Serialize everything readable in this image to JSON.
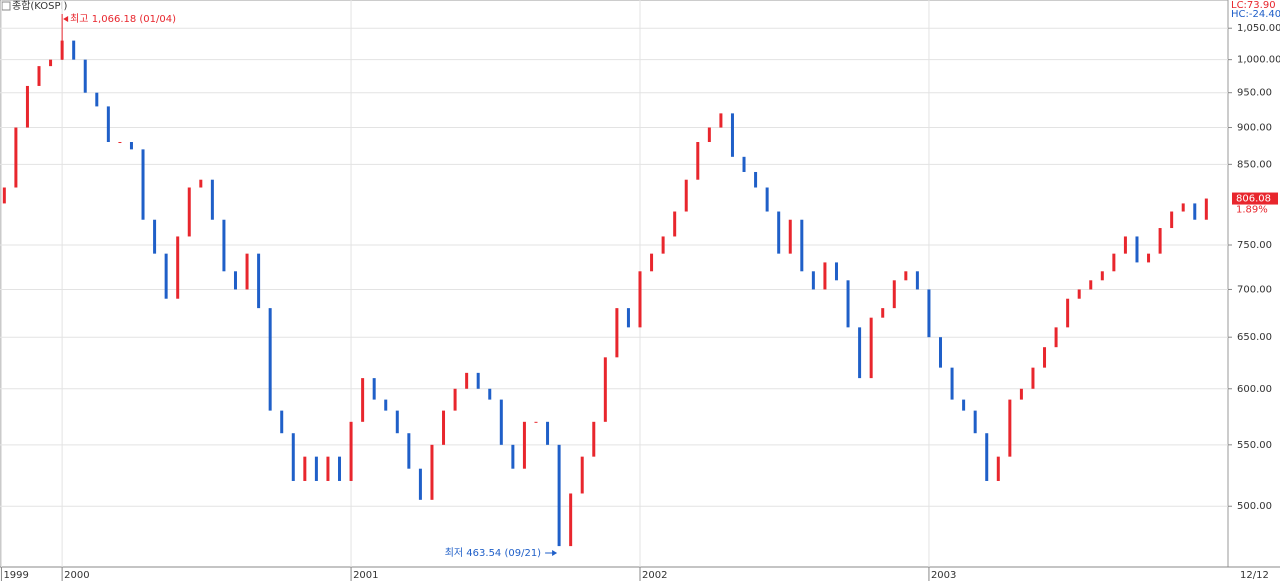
{
  "chart_data": {
    "type": "candlestick",
    "title": "종합(KOSPI)",
    "log_scale": true,
    "grid": true,
    "up_color": "#e8262d",
    "down_color": "#1f5fc8",
    "indicators": [
      "LC:73.90",
      "HC:-24.40"
    ],
    "change": "1.89%",
    "annotations": [
      "최고 1,066.18 (01/04)",
      "최저 463.54 (09/21)"
    ],
    "end_label": "12/12",
    "xlim": [
      1999.785,
      2004.035
    ],
    "xticks": [
      {
        "value": 1999.79,
        "label": "1999"
      },
      2000,
      2001,
      2002,
      2003
    ],
    "ylim": [
      455,
      1097
    ],
    "yticks": [
      500,
      {
        "value": 550,
        "label": "550.00"
      },
      {
        "value": 600,
        "label": "600.00"
      },
      {
        "value": 650,
        "label": "650.00"
      },
      {
        "value": 700,
        "label": "700.00"
      },
      {
        "value": 750,
        "label": "750.00"
      },
      {
        "value": 850,
        "label": "850.00"
      },
      {
        "value": 900,
        "label": "900.00"
      },
      {
        "value": 950,
        "label": "950.00"
      },
      {
        "value": 1000,
        "label": "1,000.00"
      },
      {
        "value": 1050,
        "label": "1,050.00"
      }
    ],
    "ytick_500_label": "500.00",
    "x": [
      1999.8,
      1999.84,
      1999.88,
      1999.92,
      1999.96,
      2000,
      2000.04,
      2000.08,
      2000.12,
      2000.16,
      2000.2,
      2000.24,
      2000.28,
      2000.32,
      2000.36,
      2000.4,
      2000.44,
      2000.48,
      2000.52,
      2000.56,
      2000.6,
      2000.64,
      2000.68,
      2000.72,
      2000.76,
      2000.8,
      2000.84,
      2000.88,
      2000.92,
      2000.96,
      2001,
      2001.04,
      2001.08,
      2001.12,
      2001.16,
      2001.2,
      2001.24,
      2001.28,
      2001.32,
      2001.36,
      2001.4,
      2001.44,
      2001.48,
      2001.52,
      2001.56,
      2001.6,
      2001.64,
      2001.68,
      2001.72,
      2001.76,
      2001.8,
      2001.84,
      2001.88,
      2001.92,
      2001.96,
      2002,
      2002.04,
      2002.08,
      2002.12,
      2002.16,
      2002.2,
      2002.24,
      2002.28,
      2002.32,
      2002.36,
      2002.4,
      2002.44,
      2002.48,
      2002.52,
      2002.56,
      2002.6,
      2002.64,
      2002.68,
      2002.72,
      2002.76,
      2002.8,
      2002.84,
      2002.88,
      2002.92,
      2002.96,
      2003,
      2003.04,
      2003.08,
      2003.12,
      2003.16,
      2003.2,
      2003.24,
      2003.28,
      2003.32,
      2003.36,
      2003.4,
      2003.44,
      2003.48,
      2003.52,
      2003.56,
      2003.6,
      2003.64,
      2003.68,
      2003.72,
      2003.76,
      2003.8,
      2003.84,
      2003.88,
      2003.92,
      2003.96
    ],
    "open": [
      800,
      820,
      900,
      960,
      990,
      1000,
      1030,
      1000,
      950,
      930,
      880,
      880,
      870,
      780,
      740,
      690,
      760,
      820,
      830,
      780,
      720,
      700,
      740,
      680,
      580,
      560,
      520,
      540,
      520,
      540,
      520,
      570,
      610,
      590,
      580,
      560,
      530,
      505,
      550,
      580,
      600,
      615,
      600,
      590,
      550,
      530,
      570,
      570,
      550,
      470,
      510,
      540,
      570,
      630,
      680,
      660,
      720,
      740,
      760,
      790,
      830,
      880,
      900,
      920,
      860,
      840,
      820,
      790,
      740,
      780,
      720,
      700,
      730,
      710,
      660,
      610,
      670,
      680,
      710,
      720,
      700,
      650,
      620,
      590,
      580,
      560,
      520,
      540,
      590,
      600,
      620,
      640,
      660,
      690,
      700,
      710,
      720,
      740,
      760,
      730,
      740,
      770,
      790,
      800,
      780
    ],
    "close": [
      820,
      900,
      960,
      990,
      1000,
      1030,
      1000,
      950,
      930,
      880,
      880,
      870,
      780,
      740,
      690,
      760,
      820,
      830,
      780,
      720,
      700,
      740,
      680,
      580,
      560,
      520,
      540,
      520,
      540,
      520,
      570,
      610,
      590,
      580,
      560,
      530,
      505,
      550,
      580,
      600,
      615,
      600,
      590,
      550,
      530,
      570,
      570,
      550,
      470,
      510,
      540,
      570,
      630,
      680,
      660,
      720,
      740,
      760,
      790,
      830,
      880,
      900,
      920,
      860,
      840,
      820,
      790,
      740,
      780,
      720,
      700,
      730,
      710,
      660,
      610,
      670,
      680,
      710,
      720,
      700,
      650,
      620,
      590,
      580,
      560,
      520,
      540,
      590,
      600,
      620,
      640,
      660,
      690,
      700,
      710,
      720,
      740,
      760,
      730,
      740,
      770,
      790,
      800,
      780,
      806.08
    ]
  }
}
